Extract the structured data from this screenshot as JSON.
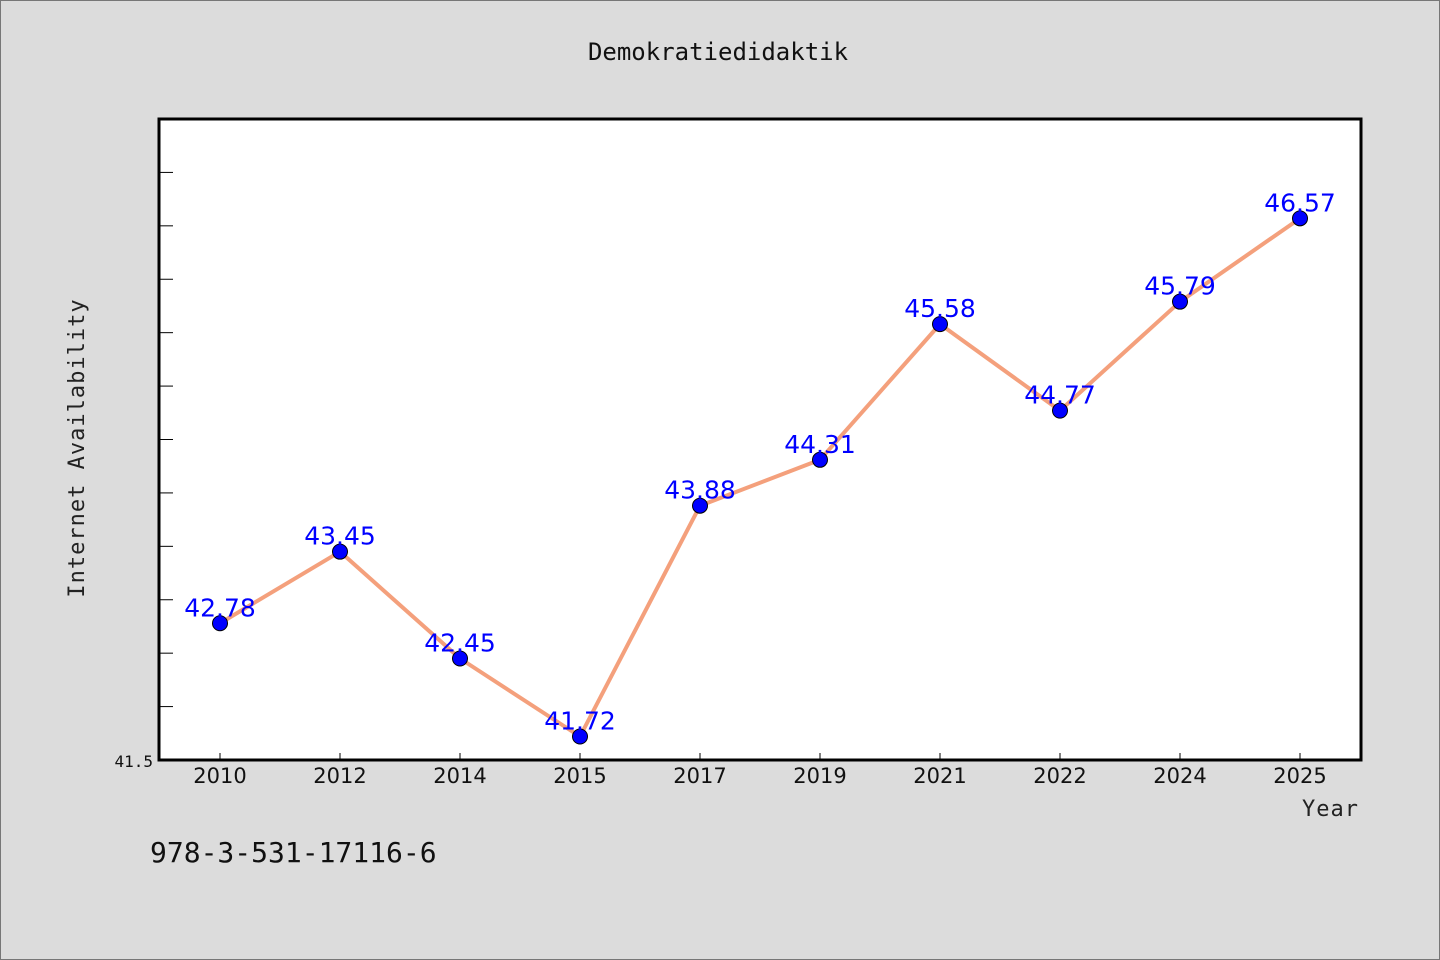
{
  "footer_text": "978-3-531-17116-6",
  "chart_data": {
    "type": "line",
    "title": "Demokratiedidaktik",
    "xlabel": "Year",
    "ylabel": "Internet Availability",
    "categories": [
      "2010",
      "2012",
      "2014",
      "2015",
      "2017",
      "2019",
      "2021",
      "2022",
      "2024",
      "2025"
    ],
    "values": [
      42.78,
      43.45,
      42.45,
      41.72,
      43.88,
      44.31,
      45.58,
      44.77,
      45.79,
      46.57
    ],
    "data_labels": [
      "42.78",
      "43.45",
      "42.45",
      "41.72",
      "43.88",
      "44.31",
      "45.58",
      "44.77",
      "45.79",
      "46.57"
    ],
    "ylim": [
      41.5,
      47.5
    ],
    "ytick_label": "41.5",
    "grid": false,
    "colors": {
      "line": "#f4a07c",
      "marker": "#0000ff",
      "data_label": "#0000ff",
      "plot_background": "#ffffff",
      "page_background": "#dcdcdc"
    }
  }
}
